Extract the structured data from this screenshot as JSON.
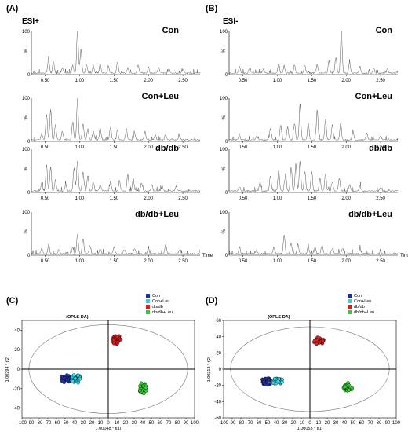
{
  "panels": {
    "A": {
      "label": "(A)",
      "ion_mode": "ESI+"
    },
    "B": {
      "label": "(B)",
      "ion_mode": "ESI-"
    },
    "C": {
      "label": "(C)"
    },
    "D": {
      "label": "(D)"
    }
  },
  "chromatogram_text": {
    "time_label": "Time",
    "percent_label": "%",
    "y_tick_labels": [
      "100",
      "0"
    ],
    "x_tick_labels": [
      "0.50",
      "1.00",
      "1.50",
      "2.00",
      "2.50"
    ]
  },
  "chart_data": [
    {
      "type": "line",
      "panel": "A",
      "ion_mode": "ESI+",
      "x_ticks": [
        0.5,
        1.0,
        1.5,
        2.0,
        2.5
      ],
      "xlim": [
        0.3,
        2.75
      ],
      "ylim": [
        0,
        100
      ],
      "y_axis_label": "%",
      "x_axis_label": "Time",
      "traces": [
        {
          "name": "Con",
          "peaks": [
            [
              0.55,
              35
            ],
            [
              0.62,
              28
            ],
            [
              0.75,
              12
            ],
            [
              0.9,
              18
            ],
            [
              0.97,
              100
            ],
            [
              1.02,
              55
            ],
            [
              1.1,
              20
            ],
            [
              1.2,
              15
            ],
            [
              1.3,
              22
            ],
            [
              1.42,
              16
            ],
            [
              1.55,
              25
            ],
            [
              1.7,
              12
            ],
            [
              1.85,
              20
            ],
            [
              2.0,
              14
            ],
            [
              2.15,
              12
            ],
            [
              2.3,
              10
            ],
            [
              2.5,
              8
            ]
          ]
        },
        {
          "name": "Con+Leu",
          "peaks": [
            [
              0.45,
              15
            ],
            [
              0.52,
              60
            ],
            [
              0.58,
              70
            ],
            [
              0.65,
              35
            ],
            [
              0.75,
              20
            ],
            [
              0.9,
              40
            ],
            [
              0.97,
              92
            ],
            [
              1.05,
              38
            ],
            [
              1.12,
              25
            ],
            [
              1.2,
              20
            ],
            [
              1.3,
              28
            ],
            [
              1.45,
              30
            ],
            [
              1.55,
              22
            ],
            [
              1.68,
              25
            ],
            [
              1.8,
              15
            ],
            [
              1.95,
              20
            ],
            [
              2.1,
              12
            ],
            [
              2.25,
              12
            ],
            [
              2.45,
              8
            ]
          ]
        },
        {
          "name": "db/db",
          "peaks": [
            [
              0.45,
              20
            ],
            [
              0.52,
              60
            ],
            [
              0.58,
              55
            ],
            [
              0.65,
              25
            ],
            [
              0.8,
              15
            ],
            [
              0.92,
              55
            ],
            [
              0.97,
              70
            ],
            [
              1.05,
              45
            ],
            [
              1.12,
              35
            ],
            [
              1.2,
              20
            ],
            [
              1.3,
              15
            ],
            [
              1.45,
              18
            ],
            [
              1.58,
              25
            ],
            [
              1.7,
              40
            ],
            [
              1.78,
              30
            ],
            [
              1.9,
              18
            ],
            [
              2.05,
              15
            ],
            [
              2.2,
              12
            ],
            [
              2.4,
              10
            ]
          ]
        },
        {
          "name": "db/db+Leu",
          "peaks": [
            [
              0.45,
              12
            ],
            [
              0.55,
              20
            ],
            [
              0.7,
              10
            ],
            [
              0.9,
              15
            ],
            [
              0.97,
              45
            ],
            [
              1.05,
              35
            ],
            [
              1.15,
              18
            ],
            [
              1.3,
              12
            ],
            [
              1.5,
              15
            ],
            [
              1.65,
              10
            ],
            [
              1.8,
              12
            ],
            [
              2.0,
              10
            ],
            [
              2.25,
              22
            ],
            [
              2.45,
              8
            ]
          ]
        }
      ]
    },
    {
      "type": "line",
      "panel": "B",
      "ion_mode": "ESI-",
      "x_ticks": [
        0.5,
        1.0,
        1.5,
        2.0,
        2.5
      ],
      "xlim": [
        0.3,
        2.75
      ],
      "ylim": [
        0,
        100
      ],
      "y_axis_label": "%",
      "x_axis_label": "Time",
      "traces": [
        {
          "name": "Con",
          "peaks": [
            [
              0.45,
              15
            ],
            [
              0.6,
              12
            ],
            [
              0.8,
              10
            ],
            [
              1.02,
              22
            ],
            [
              1.1,
              15
            ],
            [
              1.25,
              20
            ],
            [
              1.4,
              18
            ],
            [
              1.58,
              20
            ],
            [
              1.75,
              30
            ],
            [
              1.85,
              35
            ],
            [
              1.93,
              100
            ],
            [
              2.05,
              25
            ],
            [
              2.2,
              15
            ],
            [
              2.4,
              12
            ],
            [
              2.6,
              10
            ]
          ]
        },
        {
          "name": "Con+Leu",
          "peaks": [
            [
              0.45,
              12
            ],
            [
              0.7,
              10
            ],
            [
              0.9,
              25
            ],
            [
              1.05,
              35
            ],
            [
              1.15,
              30
            ],
            [
              1.25,
              38
            ],
            [
              1.33,
              85
            ],
            [
              1.45,
              40
            ],
            [
              1.58,
              70
            ],
            [
              1.7,
              45
            ],
            [
              1.8,
              35
            ],
            [
              1.92,
              40
            ],
            [
              2.1,
              20
            ],
            [
              2.3,
              15
            ],
            [
              2.5,
              10
            ]
          ]
        },
        {
          "name": "db/db",
          "peaks": [
            [
              0.45,
              10
            ],
            [
              0.75,
              20
            ],
            [
              0.9,
              35
            ],
            [
              1.02,
              50
            ],
            [
              1.12,
              40
            ],
            [
              1.2,
              55
            ],
            [
              1.27,
              65
            ],
            [
              1.33,
              70
            ],
            [
              1.4,
              45
            ],
            [
              1.5,
              45
            ],
            [
              1.62,
              30
            ],
            [
              1.7,
              40
            ],
            [
              1.8,
              20
            ],
            [
              1.9,
              30
            ],
            [
              2.05,
              15
            ],
            [
              2.2,
              12
            ],
            [
              2.5,
              8
            ]
          ]
        },
        {
          "name": "db/db+Leu",
          "peaks": [
            [
              0.45,
              12
            ],
            [
              0.7,
              8
            ],
            [
              0.95,
              15
            ],
            [
              1.1,
              45
            ],
            [
              1.2,
              25
            ],
            [
              1.3,
              20
            ],
            [
              1.45,
              18
            ],
            [
              1.55,
              15
            ],
            [
              1.65,
              20
            ],
            [
              1.8,
              12
            ],
            [
              1.95,
              12
            ],
            [
              2.2,
              10
            ],
            [
              2.5,
              6
            ]
          ]
        }
      ]
    },
    {
      "type": "scatter",
      "panel": "C",
      "title": "(OPLS-DA)",
      "xlabel": "1.00048 * t[1]",
      "ylabel": "1.00294 * t[2]",
      "xlim": [
        -100,
        100
      ],
      "ylim": [
        -50,
        50
      ],
      "x_ticks": [
        -100,
        -90,
        -80,
        -70,
        -60,
        -50,
        -40,
        -30,
        -20,
        -10,
        0,
        10,
        20,
        30,
        40,
        50,
        60,
        70,
        80,
        90,
        100
      ],
      "y_ticks": [
        -40,
        -20,
        0,
        20,
        40
      ],
      "ellipse": {
        "rx": 100,
        "ry": 48
      },
      "legend_position": "top-right",
      "series": [
        {
          "name": "Con",
          "color": "#1f2f9a",
          "center": [
            -50,
            -10
          ],
          "spread": [
            4,
            3
          ],
          "count": 22
        },
        {
          "name": "Con+Leu",
          "color": "#33d0e0",
          "center": [
            -37,
            -10
          ],
          "spread": [
            4,
            3
          ],
          "count": 22
        },
        {
          "name": "db/db",
          "color": "#d61f1f",
          "center": [
            10,
            30
          ],
          "spread": [
            4,
            3
          ],
          "count": 22
        },
        {
          "name": "db/db+Leu",
          "color": "#33cc33",
          "center": [
            40,
            -20
          ],
          "spread": [
            3,
            4
          ],
          "count": 22
        }
      ]
    },
    {
      "type": "scatter",
      "panel": "D",
      "title": "(OPLS-DA)",
      "xlabel": "1.00053 * t[1]",
      "ylabel": "1.00213 * t[2]",
      "xlim": [
        -100,
        100
      ],
      "ylim": [
        -60,
        60
      ],
      "x_ticks": [
        -100,
        -90,
        -80,
        -70,
        -60,
        -50,
        -40,
        -30,
        -20,
        -10,
        0,
        10,
        20,
        30,
        40,
        50,
        60,
        70,
        80,
        90,
        100
      ],
      "y_ticks": [
        -60,
        -40,
        -20,
        0,
        20,
        40,
        60
      ],
      "ellipse": {
        "rx": 100,
        "ry": 55
      },
      "legend_position": "top-right",
      "series": [
        {
          "name": "Con",
          "color": "#1f2f9a",
          "center": [
            -50,
            -15
          ],
          "spread": [
            4,
            3
          ],
          "count": 22
        },
        {
          "name": "Con+Leu",
          "color": "#33d0e0",
          "center": [
            -37,
            -15
          ],
          "spread": [
            4,
            3
          ],
          "count": 22
        },
        {
          "name": "db/db",
          "color": "#d61f1f",
          "center": [
            10,
            35
          ],
          "spread": [
            4,
            3
          ],
          "count": 22
        },
        {
          "name": "db/db+Leu",
          "color": "#33cc33",
          "center": [
            45,
            -22
          ],
          "spread": [
            4,
            4
          ],
          "count": 22
        }
      ]
    }
  ]
}
